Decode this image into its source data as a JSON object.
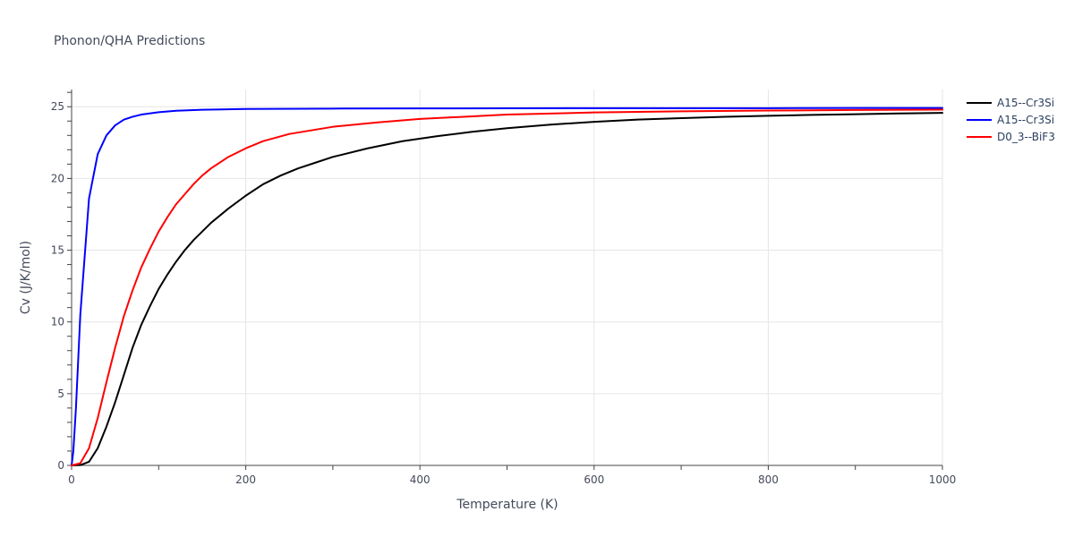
{
  "chart_data": {
    "type": "line",
    "title": "Phonon/QHA Predictions",
    "xlabel": "Temperature (K)",
    "ylabel": "Cv (J/K/mol)",
    "xlim": [
      0,
      1000
    ],
    "ylim": [
      0,
      26.2
    ],
    "xticks": [
      0,
      200,
      400,
      600,
      800,
      1000
    ],
    "yticks": [
      0,
      5,
      10,
      15,
      20,
      25
    ],
    "grid": true,
    "legend_position": "top-right",
    "series": [
      {
        "name": "A15--Cr3Si",
        "color": "#000000",
        "x": [
          0,
          10,
          20,
          30,
          40,
          50,
          60,
          70,
          80,
          90,
          100,
          110,
          120,
          130,
          140,
          150,
          160,
          170,
          180,
          200,
          220,
          240,
          260,
          280,
          300,
          340,
          380,
          420,
          460,
          500,
          550,
          600,
          650,
          700,
          750,
          800,
          850,
          900,
          950,
          1000
        ],
        "y": [
          0,
          0.02,
          0.25,
          1.2,
          2.7,
          4.4,
          6.3,
          8.2,
          9.8,
          11.1,
          12.3,
          13.3,
          14.2,
          15.0,
          15.7,
          16.3,
          16.9,
          17.4,
          17.9,
          18.8,
          19.6,
          20.2,
          20.7,
          21.1,
          21.5,
          22.1,
          22.6,
          22.95,
          23.25,
          23.5,
          23.75,
          23.95,
          24.1,
          24.2,
          24.3,
          24.37,
          24.43,
          24.48,
          24.53,
          24.57
        ]
      },
      {
        "name": "A15--Cr3Si",
        "color": "#0000ff",
        "x": [
          0,
          2,
          5,
          10,
          20,
          30,
          40,
          50,
          60,
          70,
          80,
          100,
          120,
          150,
          200,
          300,
          400,
          500,
          600,
          700,
          800,
          900,
          1000
        ],
        "y": [
          0,
          1.0,
          4.0,
          10.5,
          18.6,
          21.7,
          23.0,
          23.7,
          24.1,
          24.3,
          24.45,
          24.62,
          24.72,
          24.79,
          24.84,
          24.87,
          24.88,
          24.89,
          24.9,
          24.9,
          24.9,
          24.91,
          24.91
        ]
      },
      {
        "name": "D0_3--BiF3",
        "color": "#ff0000",
        "x": [
          0,
          10,
          20,
          30,
          40,
          50,
          60,
          70,
          80,
          90,
          100,
          110,
          120,
          130,
          140,
          150,
          160,
          180,
          200,
          220,
          250,
          300,
          350,
          400,
          450,
          500,
          600,
          700,
          800,
          900,
          1000
        ],
        "y": [
          0,
          0.15,
          1.2,
          3.3,
          5.8,
          8.2,
          10.4,
          12.2,
          13.8,
          15.1,
          16.3,
          17.3,
          18.2,
          18.9,
          19.6,
          20.2,
          20.7,
          21.5,
          22.1,
          22.6,
          23.1,
          23.6,
          23.9,
          24.15,
          24.3,
          24.45,
          24.6,
          24.68,
          24.73,
          24.77,
          24.8
        ]
      }
    ]
  }
}
